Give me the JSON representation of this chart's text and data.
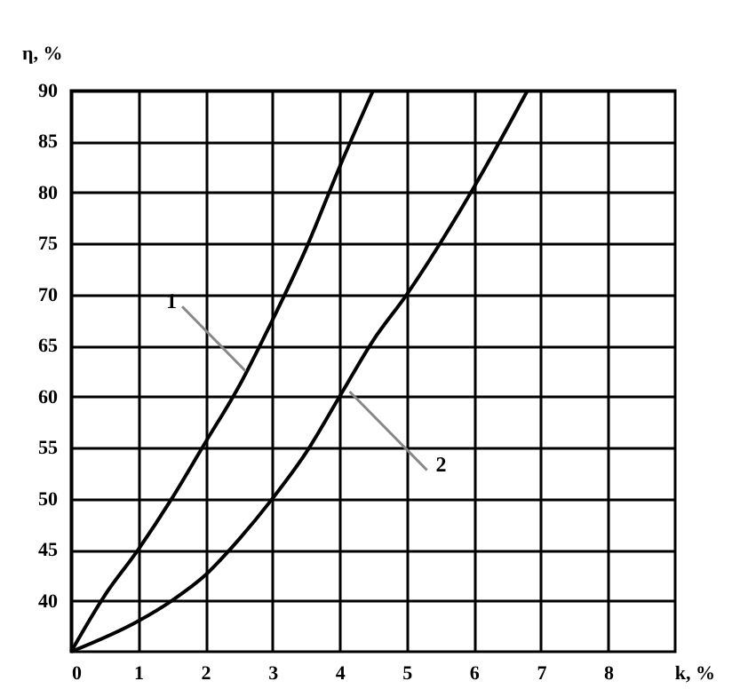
{
  "chart_data": {
    "type": "line",
    "xlabel": "k, %",
    "ylabel": "η, %",
    "xlim": [
      0,
      9
    ],
    "ylim": [
      35,
      90
    ],
    "xticks": [
      0,
      1,
      2,
      3,
      4,
      5,
      6,
      7,
      8
    ],
    "yticks": [
      40,
      45,
      50,
      55,
      60,
      65,
      70,
      75,
      80,
      85,
      90
    ],
    "grid": true,
    "line_style": "solid",
    "series": [
      {
        "color": "#000000",
        "x": [
          0,
          0.5,
          1,
          1.5,
          2,
          2.5,
          3,
          3.5,
          4,
          4.5
        ],
        "values": [
          35,
          40.5,
          45,
          50,
          55.5,
          61,
          67.5,
          74.5,
          82.5,
          90
        ]
      },
      {
        "color": "#000000",
        "x": [
          0,
          1,
          1.5,
          2,
          2.5,
          3,
          3.5,
          4,
          4.5,
          5,
          6,
          6.8
        ],
        "values": [
          35,
          38,
          40,
          42.5,
          46,
          50,
          54.5,
          60,
          65.5,
          70,
          80.5,
          90
        ]
      }
    ],
    "annotations": [
      {
        "text": "1",
        "x": 2.6,
        "y": 62.5
      },
      {
        "text": "2",
        "x": 4.15,
        "y": 60.5
      }
    ]
  }
}
